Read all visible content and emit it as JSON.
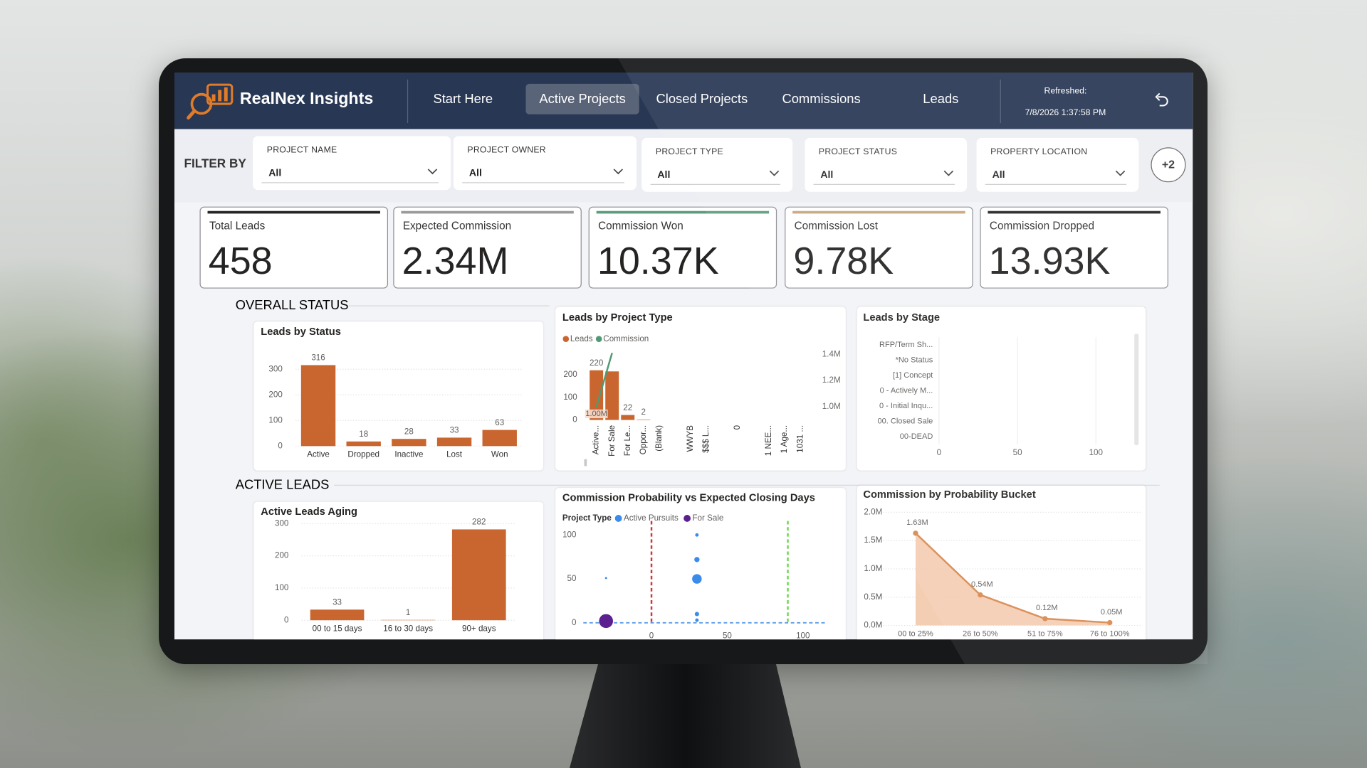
{
  "header": {
    "brand": "RealNex Insights",
    "nav": [
      "Start Here",
      "Active Projects",
      "Closed Projects",
      "Commissions",
      "Leads"
    ],
    "active_nav": 1,
    "refreshed_label": "Refreshed:",
    "refreshed_at": "7/8/2026 1:37:58 PM"
  },
  "filters": {
    "label": "FILTER BY",
    "items": [
      {
        "name": "PROJECT NAME",
        "value": "All"
      },
      {
        "name": "PROJECT OWNER",
        "value": "All"
      },
      {
        "name": "PROJECT TYPE",
        "value": "All"
      },
      {
        "name": "PROJECT STATUS",
        "value": "All"
      },
      {
        "name": "PROPERTY LOCATION",
        "value": "All"
      }
    ],
    "more": "+2"
  },
  "kpis": [
    {
      "title": "Total Leads",
      "value": "458",
      "color": "#252423"
    },
    {
      "title": "Expected Commission",
      "value": "2.34M",
      "color": "#9a9a9a"
    },
    {
      "title": "Commission Won",
      "value": "10.37K",
      "color": "#5b9c7b"
    },
    {
      "title": "Commission Lost",
      "value": "9.78K",
      "color": "#c7a57a"
    },
    {
      "title": "Commission Dropped",
      "value": "13.93K",
      "color": "#252423"
    }
  ],
  "sections": [
    "OVERALL STATUS",
    "ACTIVE LEADS"
  ],
  "chart_data": [
    {
      "type": "bar",
      "title": "Leads by Status",
      "categories": [
        "Active",
        "Dropped",
        "Inactive",
        "Lost",
        "Won"
      ],
      "values": [
        316,
        18,
        28,
        33,
        63
      ],
      "color": "#c9662f",
      "ylim": [
        0,
        350
      ],
      "yticks": [
        0,
        100,
        200,
        300
      ],
      "grid": true
    },
    {
      "type": "combo",
      "title": "Leads by Project Type",
      "categories": [
        "Active...",
        "For Sale",
        "For Le...",
        "Oppor...",
        "(Blank)",
        null,
        "WWYB",
        "$$$ L...",
        null,
        "0",
        null,
        "1 NEE...",
        "1 Age...",
        "1031 ..."
      ],
      "series": [
        {
          "name": "Leads",
          "color": "#c9662f",
          "values": [
            220,
            215,
            22,
            2,
            0,
            0,
            0,
            0,
            0,
            0,
            0,
            0,
            0,
            0
          ],
          "value_labels": [
            "220",
            null,
            "22",
            "2",
            null,
            null,
            null,
            null,
            null,
            null,
            null,
            null,
            null,
            null
          ]
        },
        {
          "name": "Commission",
          "color": "#4e9a74",
          "axis": "y2",
          "values": [
            1000000,
            1410000,
            null,
            null,
            null,
            null,
            null,
            null,
            null,
            null,
            null,
            null,
            null,
            null
          ],
          "value_labels": [
            "1.00M",
            null,
            null,
            null,
            null,
            null,
            null,
            null,
            null,
            null,
            null,
            null,
            null,
            null
          ]
        }
      ],
      "ylim": [
        0,
        320
      ],
      "yticks": [
        0,
        100,
        200
      ],
      "y2lim": [
        900000,
        1450000
      ],
      "y2ticks": [
        {
          "value": 1000000,
          "label": "1.0M"
        },
        {
          "value": 1200000,
          "label": "1.2M"
        },
        {
          "value": 1400000,
          "label": "1.4M"
        }
      ]
    },
    {
      "type": "hbar",
      "title": "Leads by Stage",
      "categories": [
        "RFP/Term Sh...",
        "*No Status",
        "[1] Concept",
        "0 - Actively M...",
        "0 - Initial Inqu...",
        "00. Closed Sale",
        "00-DEAD"
      ],
      "values": [
        0,
        0,
        0,
        0,
        0,
        0,
        0
      ],
      "color": "#c9662f",
      "xlim": [
        0,
        120
      ],
      "xticks": [
        0,
        50,
        100
      ]
    },
    {
      "type": "bar",
      "title": "Active Leads Aging",
      "categories": [
        "00 to 15 days",
        "16 to 30 days",
        "90+ days"
      ],
      "values": [
        33,
        1,
        282
      ],
      "color": "#c9662f",
      "ylim": [
        0,
        300
      ],
      "yticks": [
        0,
        100,
        200,
        300
      ],
      "grid": true
    },
    {
      "type": "scatter",
      "title": "Commission Probability vs Expected Closing Days",
      "legend_title": "Project Type",
      "series": [
        {
          "name": "Active Pursuits",
          "color": "#3b8beb",
          "x": [
            30,
            30,
            30,
            30,
            30,
            -30
          ],
          "values": [
            100,
            72,
            50,
            10,
            3,
            51
          ],
          "sizes": [
            2,
            3,
            5.5,
            2.5,
            2,
            1.2
          ]
        },
        {
          "name": "For Sale",
          "color": "#5c1f8f",
          "x": [
            -30
          ],
          "values": [
            2
          ],
          "sizes": [
            8
          ]
        }
      ],
      "xlim": [
        -45,
        115
      ],
      "xticks": [
        0,
        50,
        100
      ],
      "ylim": [
        -5,
        110
      ],
      "yticks": [
        0,
        50,
        100
      ],
      "x_reference_lines": [
        {
          "value": 0,
          "color": "#d13438"
        },
        {
          "value": 90,
          "color": "#6ad84b"
        }
      ],
      "y_reference_lines": [
        {
          "value": 0,
          "color": "#5b9be8"
        }
      ]
    },
    {
      "type": "area",
      "title": "Commission by Probability Bucket",
      "categories": [
        "00 to 25%",
        "26 to 50%",
        "51 to 75%",
        "76 to 100%"
      ],
      "values": [
        1630000,
        540000,
        120000,
        50000
      ],
      "value_labels": [
        "1.63M",
        "0.54M",
        "0.12M",
        "0.05M"
      ],
      "color": "#d9894f",
      "ylim": [
        0,
        2000000
      ],
      "yticks": [
        {
          "value": 0,
          "label": "0.0M"
        },
        {
          "value": 500000,
          "label": "0.5M"
        },
        {
          "value": 1000000,
          "label": "1.0M"
        },
        {
          "value": 1500000,
          "label": "1.5M"
        },
        {
          "value": 2000000,
          "label": "2.0M"
        }
      ],
      "grid": true
    }
  ]
}
